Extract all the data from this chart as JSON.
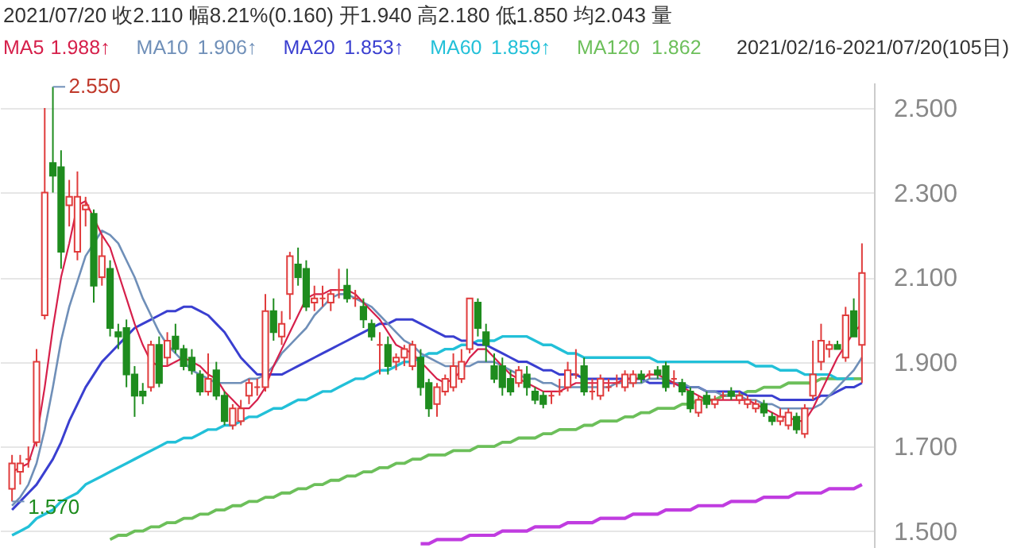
{
  "chart_data": {
    "type": "candlestick",
    "title": "2021/07/20  收2.110  幅8.21%(0.160)  开1.940  高2.180  低1.850  均2.043  量",
    "categories": [
      null,
      null,
      null,
      null,
      null,
      null,
      null,
      null,
      null,
      null,
      null,
      null,
      null,
      null,
      null,
      null,
      null,
      null,
      null,
      null,
      null,
      null,
      null,
      null,
      null,
      null,
      null,
      null,
      null,
      null,
      null,
      null,
      null,
      null,
      null,
      null,
      null,
      null,
      null,
      null,
      null,
      null,
      null,
      null,
      null,
      null,
      null,
      null,
      null,
      null,
      null,
      null,
      null,
      null,
      null,
      null,
      null,
      null,
      null,
      null,
      null,
      null,
      null,
      null,
      null,
      null,
      null,
      null,
      null,
      null,
      null,
      null,
      null,
      null,
      null,
      null,
      null,
      null,
      null,
      null,
      null,
      null,
      null,
      null,
      null,
      null,
      null,
      null,
      null,
      null,
      null,
      null,
      null,
      null,
      null,
      null,
      null,
      null,
      null,
      null,
      null,
      null,
      null,
      null,
      null
    ],
    "ohlc": [
      [
        1.6,
        1.68,
        1.57,
        1.66
      ],
      [
        1.64,
        1.68,
        1.61,
        1.66
      ],
      [
        1.67,
        1.7,
        1.65,
        1.67
      ],
      [
        1.71,
        1.93,
        1.7,
        1.9
      ],
      [
        2.01,
        2.5,
        2.0,
        2.3
      ],
      [
        2.37,
        2.55,
        2.3,
        2.34
      ],
      [
        2.36,
        2.4,
        2.12,
        2.16
      ],
      [
        2.27,
        2.33,
        2.22,
        2.29
      ],
      [
        2.16,
        2.35,
        2.14,
        2.29
      ],
      [
        2.26,
        2.29,
        2.22,
        2.27
      ],
      [
        2.25,
        2.26,
        2.04,
        2.08
      ],
      [
        2.1,
        2.2,
        2.08,
        2.15
      ],
      [
        2.12,
        2.14,
        1.96,
        1.98
      ],
      [
        1.97,
        1.99,
        1.93,
        1.96
      ],
      [
        1.98,
        2.0,
        1.84,
        1.87
      ],
      [
        1.87,
        1.89,
        1.77,
        1.82
      ],
      [
        1.83,
        1.85,
        1.8,
        1.82
      ],
      [
        1.84,
        1.95,
        1.83,
        1.94
      ],
      [
        1.94,
        1.96,
        1.84,
        1.85
      ],
      [
        1.91,
        1.97,
        1.89,
        1.95
      ],
      [
        1.96,
        1.99,
        1.92,
        1.93
      ],
      [
        1.93,
        1.94,
        1.88,
        1.89
      ],
      [
        1.91,
        1.93,
        1.87,
        1.88
      ],
      [
        1.87,
        1.88,
        1.82,
        1.83
      ],
      [
        1.83,
        1.92,
        1.82,
        1.86
      ],
      [
        1.88,
        1.9,
        1.81,
        1.82
      ],
      [
        1.82,
        1.83,
        1.75,
        1.76
      ],
      [
        1.75,
        1.8,
        1.74,
        1.79
      ],
      [
        1.76,
        1.81,
        1.75,
        1.79
      ],
      [
        1.82,
        1.86,
        1.8,
        1.85
      ],
      [
        1.84,
        1.86,
        1.82,
        1.84
      ],
      [
        1.84,
        2.06,
        1.83,
        2.02
      ],
      [
        2.02,
        2.05,
        1.95,
        1.97
      ],
      [
        1.96,
        2.02,
        1.94,
        1.99
      ],
      [
        2.06,
        2.16,
        2.0,
        2.15
      ],
      [
        2.13,
        2.17,
        2.08,
        2.1
      ],
      [
        2.12,
        2.14,
        2.02,
        2.03
      ],
      [
        2.04,
        2.08,
        2.02,
        2.05
      ],
      [
        2.05,
        2.08,
        2.03,
        2.05
      ],
      [
        2.04,
        2.07,
        2.02,
        2.06
      ],
      [
        2.07,
        2.12,
        2.05,
        2.07
      ],
      [
        2.08,
        2.12,
        2.04,
        2.05
      ],
      [
        2.05,
        2.07,
        2.03,
        2.05
      ],
      [
        2.03,
        2.05,
        1.98,
        2.0
      ],
      [
        1.99,
        2.0,
        1.95,
        1.96
      ],
      [
        1.94,
        1.97,
        1.87,
        1.94
      ],
      [
        1.94,
        1.96,
        1.87,
        1.89
      ],
      [
        1.9,
        1.92,
        1.88,
        1.91
      ],
      [
        1.91,
        1.94,
        1.89,
        1.93
      ],
      [
        1.89,
        1.95,
        1.88,
        1.94
      ],
      [
        1.91,
        1.93,
        1.82,
        1.84
      ],
      [
        1.85,
        1.86,
        1.77,
        1.79
      ],
      [
        1.8,
        1.85,
        1.77,
        1.84
      ],
      [
        1.83,
        1.87,
        1.82,
        1.86
      ],
      [
        1.84,
        1.92,
        1.83,
        1.89
      ],
      [
        1.86,
        1.93,
        1.85,
        1.9
      ],
      [
        1.93,
        2.05,
        1.92,
        2.05
      ],
      [
        2.04,
        2.05,
        1.96,
        1.98
      ],
      [
        1.97,
        1.99,
        1.9,
        1.94
      ],
      [
        1.89,
        1.92,
        1.85,
        1.86
      ],
      [
        1.89,
        1.91,
        1.82,
        1.84
      ],
      [
        1.86,
        1.88,
        1.82,
        1.83
      ],
      [
        1.85,
        1.89,
        1.84,
        1.88
      ],
      [
        1.87,
        1.89,
        1.82,
        1.84
      ],
      [
        1.83,
        1.84,
        1.8,
        1.81
      ],
      [
        1.82,
        1.83,
        1.79,
        1.8
      ],
      [
        1.82,
        1.83,
        1.8,
        1.82
      ],
      [
        1.83,
        1.86,
        1.82,
        1.83
      ],
      [
        1.84,
        1.9,
        1.83,
        1.88
      ],
      [
        1.87,
        1.93,
        1.86,
        1.87
      ],
      [
        1.89,
        1.91,
        1.82,
        1.83
      ],
      [
        1.83,
        1.86,
        1.81,
        1.83
      ],
      [
        1.82,
        1.87,
        1.81,
        1.86
      ],
      [
        1.84,
        1.86,
        1.83,
        1.84
      ],
      [
        1.85,
        1.87,
        1.84,
        1.85
      ],
      [
        1.84,
        1.88,
        1.83,
        1.87
      ],
      [
        1.85,
        1.88,
        1.84,
        1.87
      ],
      [
        1.87,
        1.88,
        1.85,
        1.86
      ],
      [
        1.87,
        1.88,
        1.86,
        1.87
      ],
      [
        1.88,
        1.89,
        1.86,
        1.87
      ],
      [
        1.89,
        1.9,
        1.83,
        1.84
      ],
      [
        1.86,
        1.88,
        1.84,
        1.86
      ],
      [
        1.85,
        1.86,
        1.82,
        1.83
      ],
      [
        1.83,
        1.84,
        1.78,
        1.79
      ],
      [
        1.78,
        1.82,
        1.77,
        1.81
      ],
      [
        1.82,
        1.83,
        1.79,
        1.8
      ],
      [
        1.8,
        1.82,
        1.79,
        1.81
      ],
      [
        1.82,
        1.83,
        1.81,
        1.82
      ],
      [
        1.83,
        1.84,
        1.81,
        1.82
      ],
      [
        1.81,
        1.83,
        1.8,
        1.82
      ],
      [
        1.8,
        1.82,
        1.79,
        1.81
      ],
      [
        1.79,
        1.81,
        1.78,
        1.8
      ],
      [
        1.8,
        1.81,
        1.77,
        1.78
      ],
      [
        1.77,
        1.78,
        1.75,
        1.76
      ],
      [
        1.76,
        1.79,
        1.75,
        1.77
      ],
      [
        1.75,
        1.79,
        1.74,
        1.78
      ],
      [
        1.77,
        1.78,
        1.73,
        1.74
      ],
      [
        1.73,
        1.8,
        1.72,
        1.79
      ],
      [
        1.82,
        1.95,
        1.81,
        1.87
      ],
      [
        1.9,
        1.99,
        1.88,
        1.95
      ],
      [
        1.93,
        1.95,
        1.91,
        1.94
      ],
      [
        1.94,
        1.95,
        1.93,
        1.93
      ],
      [
        1.91,
        2.03,
        1.9,
        2.01
      ],
      [
        2.02,
        2.05,
        1.96,
        1.96
      ],
      [
        1.94,
        2.18,
        1.85,
        2.11
      ]
    ],
    "colors": [
      "#e03c3c",
      "#e03c3c",
      "#e03c3c",
      "#e03c3c",
      "#e03c3c",
      "#1e8c1e",
      "#1e8c1e",
      "#e03c3c",
      "#e03c3c",
      "#e03c3c",
      "#1e8c1e",
      "#e03c3c",
      "#1e8c1e",
      "#1e8c1e",
      "#1e8c1e",
      "#1e8c1e",
      "#1e8c1e",
      "#e03c3c",
      "#1e8c1e",
      "#e03c3c",
      "#1e8c1e",
      "#1e8c1e",
      "#1e8c1e",
      "#1e8c1e",
      "#e03c3c",
      "#1e8c1e",
      "#1e8c1e",
      "#e03c3c",
      "#e03c3c",
      "#e03c3c",
      "#e03c3c",
      "#e03c3c",
      "#1e8c1e",
      "#e03c3c",
      "#e03c3c",
      "#1e8c1e",
      "#1e8c1e",
      "#e03c3c",
      "#e03c3c",
      "#e03c3c",
      "#e03c3c",
      "#1e8c1e",
      "#e03c3c",
      "#1e8c1e",
      "#1e8c1e",
      "#e03c3c",
      "#1e8c1e",
      "#e03c3c",
      "#e03c3c",
      "#e03c3c",
      "#1e8c1e",
      "#1e8c1e",
      "#e03c3c",
      "#e03c3c",
      "#e03c3c",
      "#e03c3c",
      "#e03c3c",
      "#1e8c1e",
      "#1e8c1e",
      "#1e8c1e",
      "#1e8c1e",
      "#1e8c1e",
      "#e03c3c",
      "#1e8c1e",
      "#1e8c1e",
      "#1e8c1e",
      "#e03c3c",
      "#e03c3c",
      "#e03c3c",
      "#e03c3c",
      "#1e8c1e",
      "#e03c3c",
      "#e03c3c",
      "#e03c3c",
      "#e03c3c",
      "#e03c3c",
      "#e03c3c",
      "#1e8c1e",
      "#e03c3c",
      "#1e8c1e",
      "#1e8c1e",
      "#e03c3c",
      "#1e8c1e",
      "#1e8c1e",
      "#e03c3c",
      "#1e8c1e",
      "#e03c3c",
      "#e03c3c",
      "#1e8c1e",
      "#e03c3c",
      "#e03c3c",
      "#e03c3c",
      "#1e8c1e",
      "#1e8c1e",
      "#e03c3c",
      "#e03c3c",
      "#1e8c1e",
      "#e03c3c",
      "#e03c3c",
      "#e03c3c",
      "#e03c3c",
      "#1e8c1e",
      "#e03c3c",
      "#1e8c1e",
      "#e03c3c"
    ],
    "series": [
      {
        "name": "MA5",
        "type": "line",
        "color": "#d6204b",
        "values": [
          1.64,
          1.65,
          1.66,
          1.72,
          1.84,
          1.98,
          2.1,
          2.18,
          2.27,
          2.28,
          2.24,
          2.2,
          2.17,
          2.11,
          2.05,
          1.99,
          1.94,
          1.9,
          1.89,
          1.89,
          1.9,
          1.91,
          1.9,
          1.89,
          1.87,
          1.86,
          1.83,
          1.81,
          1.79,
          1.79,
          1.81,
          1.84,
          1.89,
          1.93,
          1.97,
          2.01,
          2.05,
          2.06,
          2.06,
          2.07,
          2.07,
          2.07,
          2.06,
          2.04,
          2.02,
          2.0,
          1.97,
          1.94,
          1.93,
          1.92,
          1.9,
          1.88,
          1.86,
          1.85,
          1.86,
          1.88,
          1.91,
          1.93,
          1.93,
          1.91,
          1.89,
          1.87,
          1.86,
          1.85,
          1.84,
          1.83,
          1.83,
          1.83,
          1.84,
          1.85,
          1.85,
          1.85,
          1.85,
          1.85,
          1.85,
          1.86,
          1.86,
          1.86,
          1.87,
          1.87,
          1.86,
          1.85,
          1.84,
          1.83,
          1.82,
          1.81,
          1.81,
          1.81,
          1.81,
          1.81,
          1.81,
          1.8,
          1.79,
          1.78,
          1.77,
          1.77,
          1.76,
          1.76,
          1.79,
          1.83,
          1.87,
          1.91,
          1.94,
          1.97,
          1.99
        ]
      },
      {
        "name": "MA10",
        "type": "line",
        "color": "#6f8fb8",
        "values": [
          1.56,
          1.58,
          1.61,
          1.66,
          1.74,
          1.84,
          1.95,
          2.03,
          2.09,
          2.15,
          2.18,
          2.21,
          2.2,
          2.18,
          2.14,
          2.1,
          2.05,
          2.01,
          1.97,
          1.94,
          1.92,
          1.9,
          1.88,
          1.87,
          1.86,
          1.85,
          1.85,
          1.85,
          1.85,
          1.86,
          1.86,
          1.87,
          1.89,
          1.92,
          1.94,
          1.96,
          1.98,
          2.01,
          2.03,
          2.05,
          2.06,
          2.06,
          2.05,
          2.04,
          2.03,
          2.01,
          1.99,
          1.97,
          1.95,
          1.94,
          1.92,
          1.91,
          1.9,
          1.89,
          1.89,
          1.89,
          1.89,
          1.9,
          1.9,
          1.9,
          1.89,
          1.88,
          1.87,
          1.86,
          1.86,
          1.85,
          1.85,
          1.84,
          1.84,
          1.84,
          1.84,
          1.84,
          1.84,
          1.84,
          1.85,
          1.85,
          1.85,
          1.85,
          1.86,
          1.86,
          1.86,
          1.85,
          1.85,
          1.84,
          1.84,
          1.83,
          1.83,
          1.82,
          1.82,
          1.82,
          1.81,
          1.81,
          1.8,
          1.8,
          1.79,
          1.79,
          1.79,
          1.79,
          1.79,
          1.8,
          1.82,
          1.84,
          1.86,
          1.88,
          1.91
        ]
      },
      {
        "name": "MA20",
        "type": "line",
        "color": "#3a3fd0",
        "values": [
          1.55,
          1.57,
          1.59,
          1.61,
          1.64,
          1.67,
          1.71,
          1.76,
          1.8,
          1.84,
          1.87,
          1.9,
          1.92,
          1.94,
          1.96,
          1.98,
          1.99,
          2.0,
          2.01,
          2.02,
          2.02,
          2.03,
          2.03,
          2.02,
          2.01,
          1.99,
          1.97,
          1.94,
          1.91,
          1.89,
          1.87,
          1.87,
          1.87,
          1.87,
          1.88,
          1.89,
          1.9,
          1.91,
          1.92,
          1.93,
          1.94,
          1.95,
          1.96,
          1.97,
          1.98,
          1.99,
          1.99,
          2.0,
          2.0,
          2.0,
          1.99,
          1.98,
          1.97,
          1.96,
          1.96,
          1.95,
          1.95,
          1.94,
          1.94,
          1.93,
          1.92,
          1.91,
          1.9,
          1.9,
          1.89,
          1.88,
          1.88,
          1.87,
          1.87,
          1.87,
          1.86,
          1.86,
          1.86,
          1.86,
          1.86,
          1.86,
          1.86,
          1.86,
          1.85,
          1.85,
          1.85,
          1.85,
          1.84,
          1.84,
          1.84,
          1.83,
          1.83,
          1.83,
          1.83,
          1.83,
          1.82,
          1.82,
          1.82,
          1.82,
          1.81,
          1.81,
          1.81,
          1.81,
          1.81,
          1.82,
          1.82,
          1.83,
          1.84,
          1.84,
          1.85
        ]
      },
      {
        "name": "MA60",
        "type": "line",
        "color": "#22c0d8",
        "values": [
          1.49,
          1.5,
          1.51,
          1.53,
          1.54,
          1.55,
          1.57,
          1.58,
          1.59,
          1.61,
          1.62,
          1.63,
          1.64,
          1.65,
          1.66,
          1.67,
          1.68,
          1.69,
          1.7,
          1.71,
          1.71,
          1.72,
          1.72,
          1.73,
          1.74,
          1.74,
          1.75,
          1.75,
          1.76,
          1.77,
          1.77,
          1.78,
          1.79,
          1.79,
          1.8,
          1.81,
          1.81,
          1.82,
          1.83,
          1.83,
          1.84,
          1.85,
          1.86,
          1.86,
          1.87,
          1.88,
          1.88,
          1.89,
          1.9,
          1.9,
          1.91,
          1.92,
          1.92,
          1.93,
          1.93,
          1.94,
          1.94,
          1.95,
          1.95,
          1.95,
          1.96,
          1.96,
          1.96,
          1.96,
          1.95,
          1.94,
          1.94,
          1.93,
          1.92,
          1.92,
          1.91,
          1.91,
          1.91,
          1.91,
          1.91,
          1.91,
          1.91,
          1.91,
          1.91,
          1.9,
          1.9,
          1.9,
          1.9,
          1.9,
          1.9,
          1.9,
          1.9,
          1.9,
          1.9,
          1.9,
          1.9,
          1.89,
          1.89,
          1.89,
          1.88,
          1.88,
          1.88,
          1.87,
          1.87,
          1.87,
          1.87,
          1.86,
          1.86,
          1.86,
          null
        ]
      },
      {
        "name": "MA120",
        "type": "line",
        "color": "#6cbf5a",
        "values": [
          null,
          null,
          null,
          null,
          null,
          null,
          null,
          null,
          null,
          null,
          null,
          null,
          1.48,
          1.49,
          1.49,
          1.5,
          1.5,
          1.51,
          1.51,
          1.52,
          1.52,
          1.53,
          1.53,
          1.54,
          1.54,
          1.55,
          1.55,
          1.56,
          1.56,
          1.57,
          1.57,
          1.58,
          1.58,
          1.59,
          1.59,
          1.6,
          1.6,
          1.61,
          1.61,
          1.62,
          1.62,
          1.63,
          1.63,
          1.64,
          1.64,
          1.65,
          1.65,
          1.66,
          1.66,
          1.67,
          1.67,
          1.68,
          1.68,
          1.68,
          1.69,
          1.69,
          1.69,
          1.7,
          1.7,
          1.7,
          1.71,
          1.71,
          1.72,
          1.72,
          1.72,
          1.73,
          1.73,
          1.74,
          1.74,
          1.74,
          1.75,
          1.75,
          1.76,
          1.76,
          1.76,
          1.77,
          1.77,
          1.78,
          1.78,
          1.79,
          1.79,
          1.79,
          1.8,
          1.8,
          1.81,
          1.81,
          1.81,
          1.82,
          1.82,
          1.82,
          1.83,
          1.83,
          1.84,
          1.84,
          1.84,
          1.85,
          1.85,
          1.85,
          1.85,
          1.86,
          1.86,
          1.86,
          1.86,
          1.86,
          1.86
        ]
      },
      {
        "type": "line",
        "color": "#c03ce0",
        "values": [
          null,
          null,
          null,
          null,
          null,
          null,
          null,
          null,
          null,
          null,
          null,
          null,
          null,
          null,
          null,
          null,
          null,
          null,
          null,
          null,
          null,
          null,
          null,
          null,
          null,
          null,
          null,
          null,
          null,
          null,
          null,
          null,
          null,
          null,
          null,
          null,
          null,
          null,
          null,
          null,
          null,
          null,
          null,
          null,
          null,
          null,
          null,
          null,
          null,
          null,
          1.47,
          1.47,
          1.48,
          1.48,
          1.48,
          1.48,
          1.49,
          1.49,
          1.49,
          1.49,
          1.5,
          1.5,
          1.5,
          1.5,
          1.51,
          1.51,
          1.51,
          1.51,
          1.52,
          1.52,
          1.52,
          1.52,
          1.53,
          1.53,
          1.53,
          1.53,
          1.54,
          1.54,
          1.54,
          1.54,
          1.55,
          1.55,
          1.55,
          1.55,
          1.56,
          1.56,
          1.56,
          1.56,
          1.57,
          1.57,
          1.57,
          1.57,
          1.58,
          1.58,
          1.58,
          1.58,
          1.59,
          1.59,
          1.59,
          1.59,
          1.6,
          1.6,
          1.6,
          1.6,
          1.61
        ]
      }
    ],
    "annotations": [
      "1.988↑",
      "1.906↑",
      "1.853↑",
      "1.859↑",
      "1.862",
      "2021/02/16-2021/07/20(105日)",
      "2.550",
      "1.570"
    ],
    "ylim": [
      1.46,
      2.56
    ],
    "yticks": [
      {
        "value": 1.5,
        "label": "1.500"
      },
      {
        "value": 1.7,
        "label": "1.700"
      },
      {
        "value": 1.9,
        "label": "1.900"
      },
      {
        "value": 2.1,
        "label": "2.100"
      },
      {
        "value": 2.3,
        "label": "2.300"
      },
      {
        "value": 2.5,
        "label": "2.500"
      }
    ],
    "grid": "y",
    "legend": "top"
  }
}
